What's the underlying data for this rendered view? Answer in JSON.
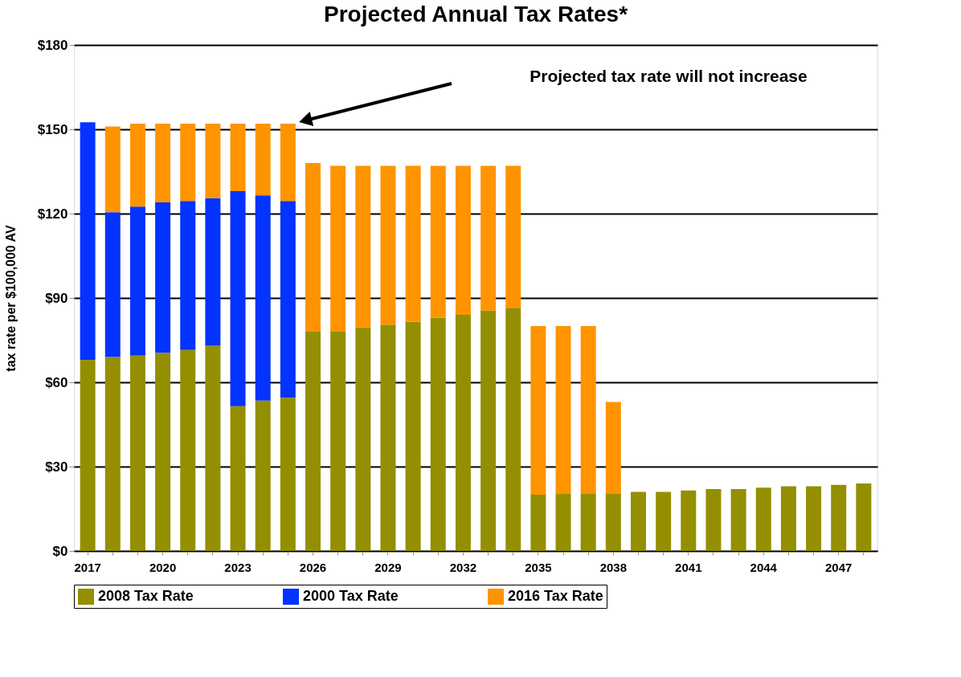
{
  "chart_data": {
    "type": "bar",
    "title": "Projected Annual Tax Rates*",
    "ylabel": "tax rate per $100,000 AV",
    "categories": [
      "2017",
      null,
      null,
      "2020",
      null,
      null,
      "2023",
      null,
      null,
      "2026",
      null,
      null,
      "2029",
      null,
      null,
      "2032",
      null,
      null,
      "2035",
      null,
      null,
      "2038",
      null,
      null,
      "2041",
      null,
      null,
      "2044",
      null,
      null,
      "2047",
      null
    ],
    "stacked": true,
    "series": [
      {
        "name": "2008 Tax Rate",
        "color": "#948f00",
        "values": [
          68,
          69,
          69.5,
          70.5,
          71.5,
          73,
          51.5,
          53.5,
          54.5,
          78,
          78,
          79.5,
          80.5,
          81.5,
          83,
          84,
          85.5,
          86.5,
          20,
          20.5,
          20.5,
          20.5,
          21,
          21,
          21.5,
          22,
          22,
          22.5,
          23,
          23,
          23.5,
          24
        ]
      },
      {
        "name": "2000 Tax Rate",
        "color": "#0432ff",
        "values": [
          84.5,
          51.5,
          53,
          53.5,
          53,
          52.5,
          76.5,
          73,
          70,
          null,
          null,
          null,
          null,
          null,
          null,
          null,
          null,
          null,
          null,
          null,
          null,
          null,
          null,
          null,
          null,
          null,
          null,
          null,
          null,
          null,
          null,
          null
        ]
      },
      {
        "name": "2016 Tax Rate",
        "color": "#ff9400",
        "values": [
          null,
          30.5,
          29.5,
          28,
          27.5,
          26.5,
          24,
          25.5,
          27.5,
          60,
          59,
          57.5,
          56.5,
          55.5,
          54,
          53,
          51.5,
          50.5,
          60,
          59.5,
          59.5,
          32.5,
          null,
          null,
          null,
          null,
          null,
          null,
          null,
          null,
          null,
          null
        ]
      }
    ],
    "ylim": [
      0,
      180
    ],
    "yticks": [
      {
        "value": 0,
        "label": "$0"
      },
      {
        "value": 30,
        "label": "$30"
      },
      {
        "value": 60,
        "label": "$60"
      },
      {
        "value": 90,
        "label": "$90"
      },
      {
        "value": 120,
        "label": "$120"
      },
      {
        "value": 150,
        "label": "$150"
      },
      {
        "value": 180,
        "label": "$180"
      }
    ],
    "grid": "y",
    "legend": "bottom",
    "annotations": [
      "Projected tax rate will not increase"
    ]
  }
}
